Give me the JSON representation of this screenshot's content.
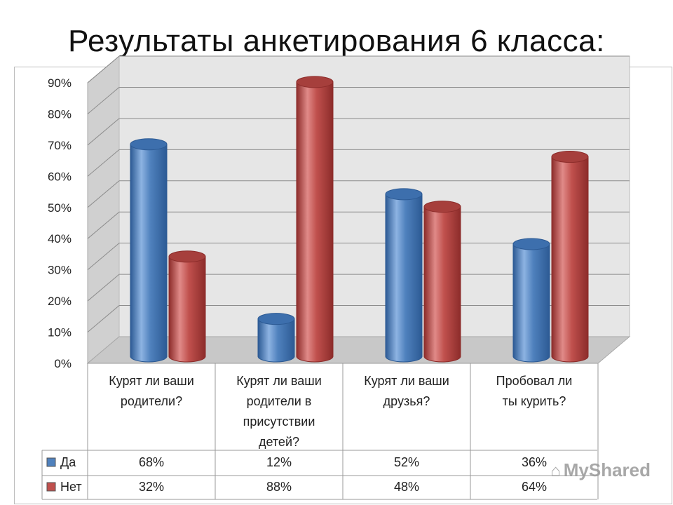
{
  "page": {
    "title": "Результаты анкетирования 6 класса:"
  },
  "watermark": {
    "text": "MyShared"
  },
  "colors": {
    "yes": "#4f81bd",
    "no": "#c0504d",
    "grid": "#8c8c8c",
    "wall": "#e6e6e6",
    "side": "#d0d0d0",
    "floor": "#c8c8c8"
  },
  "chart_data": {
    "type": "bar",
    "title": "",
    "xlabel": "",
    "ylabel": "",
    "ylim": [
      0,
      90
    ],
    "y_ticks": [
      "0%",
      "10%",
      "20%",
      "30%",
      "40%",
      "50%",
      "60%",
      "70%",
      "80%",
      "90%"
    ],
    "categories": [
      [
        "Курят ли ваши",
        "родители?"
      ],
      [
        "Курят ли ваши",
        "родители в",
        "присутствии",
        "детей?"
      ],
      [
        "Курят ли ваши",
        "друзья?"
      ],
      [
        "Пробовал ли",
        "ты курить?"
      ]
    ],
    "series": [
      {
        "name": "Да",
        "values": [
          68,
          12,
          52,
          36
        ],
        "labels": [
          "68%",
          "12%",
          "52%",
          "36%"
        ]
      },
      {
        "name": "Нет",
        "values": [
          32,
          88,
          48,
          64
        ],
        "labels": [
          "32%",
          "88%",
          "48%",
          "64%"
        ]
      }
    ],
    "grid": true,
    "legend": "data-table"
  }
}
